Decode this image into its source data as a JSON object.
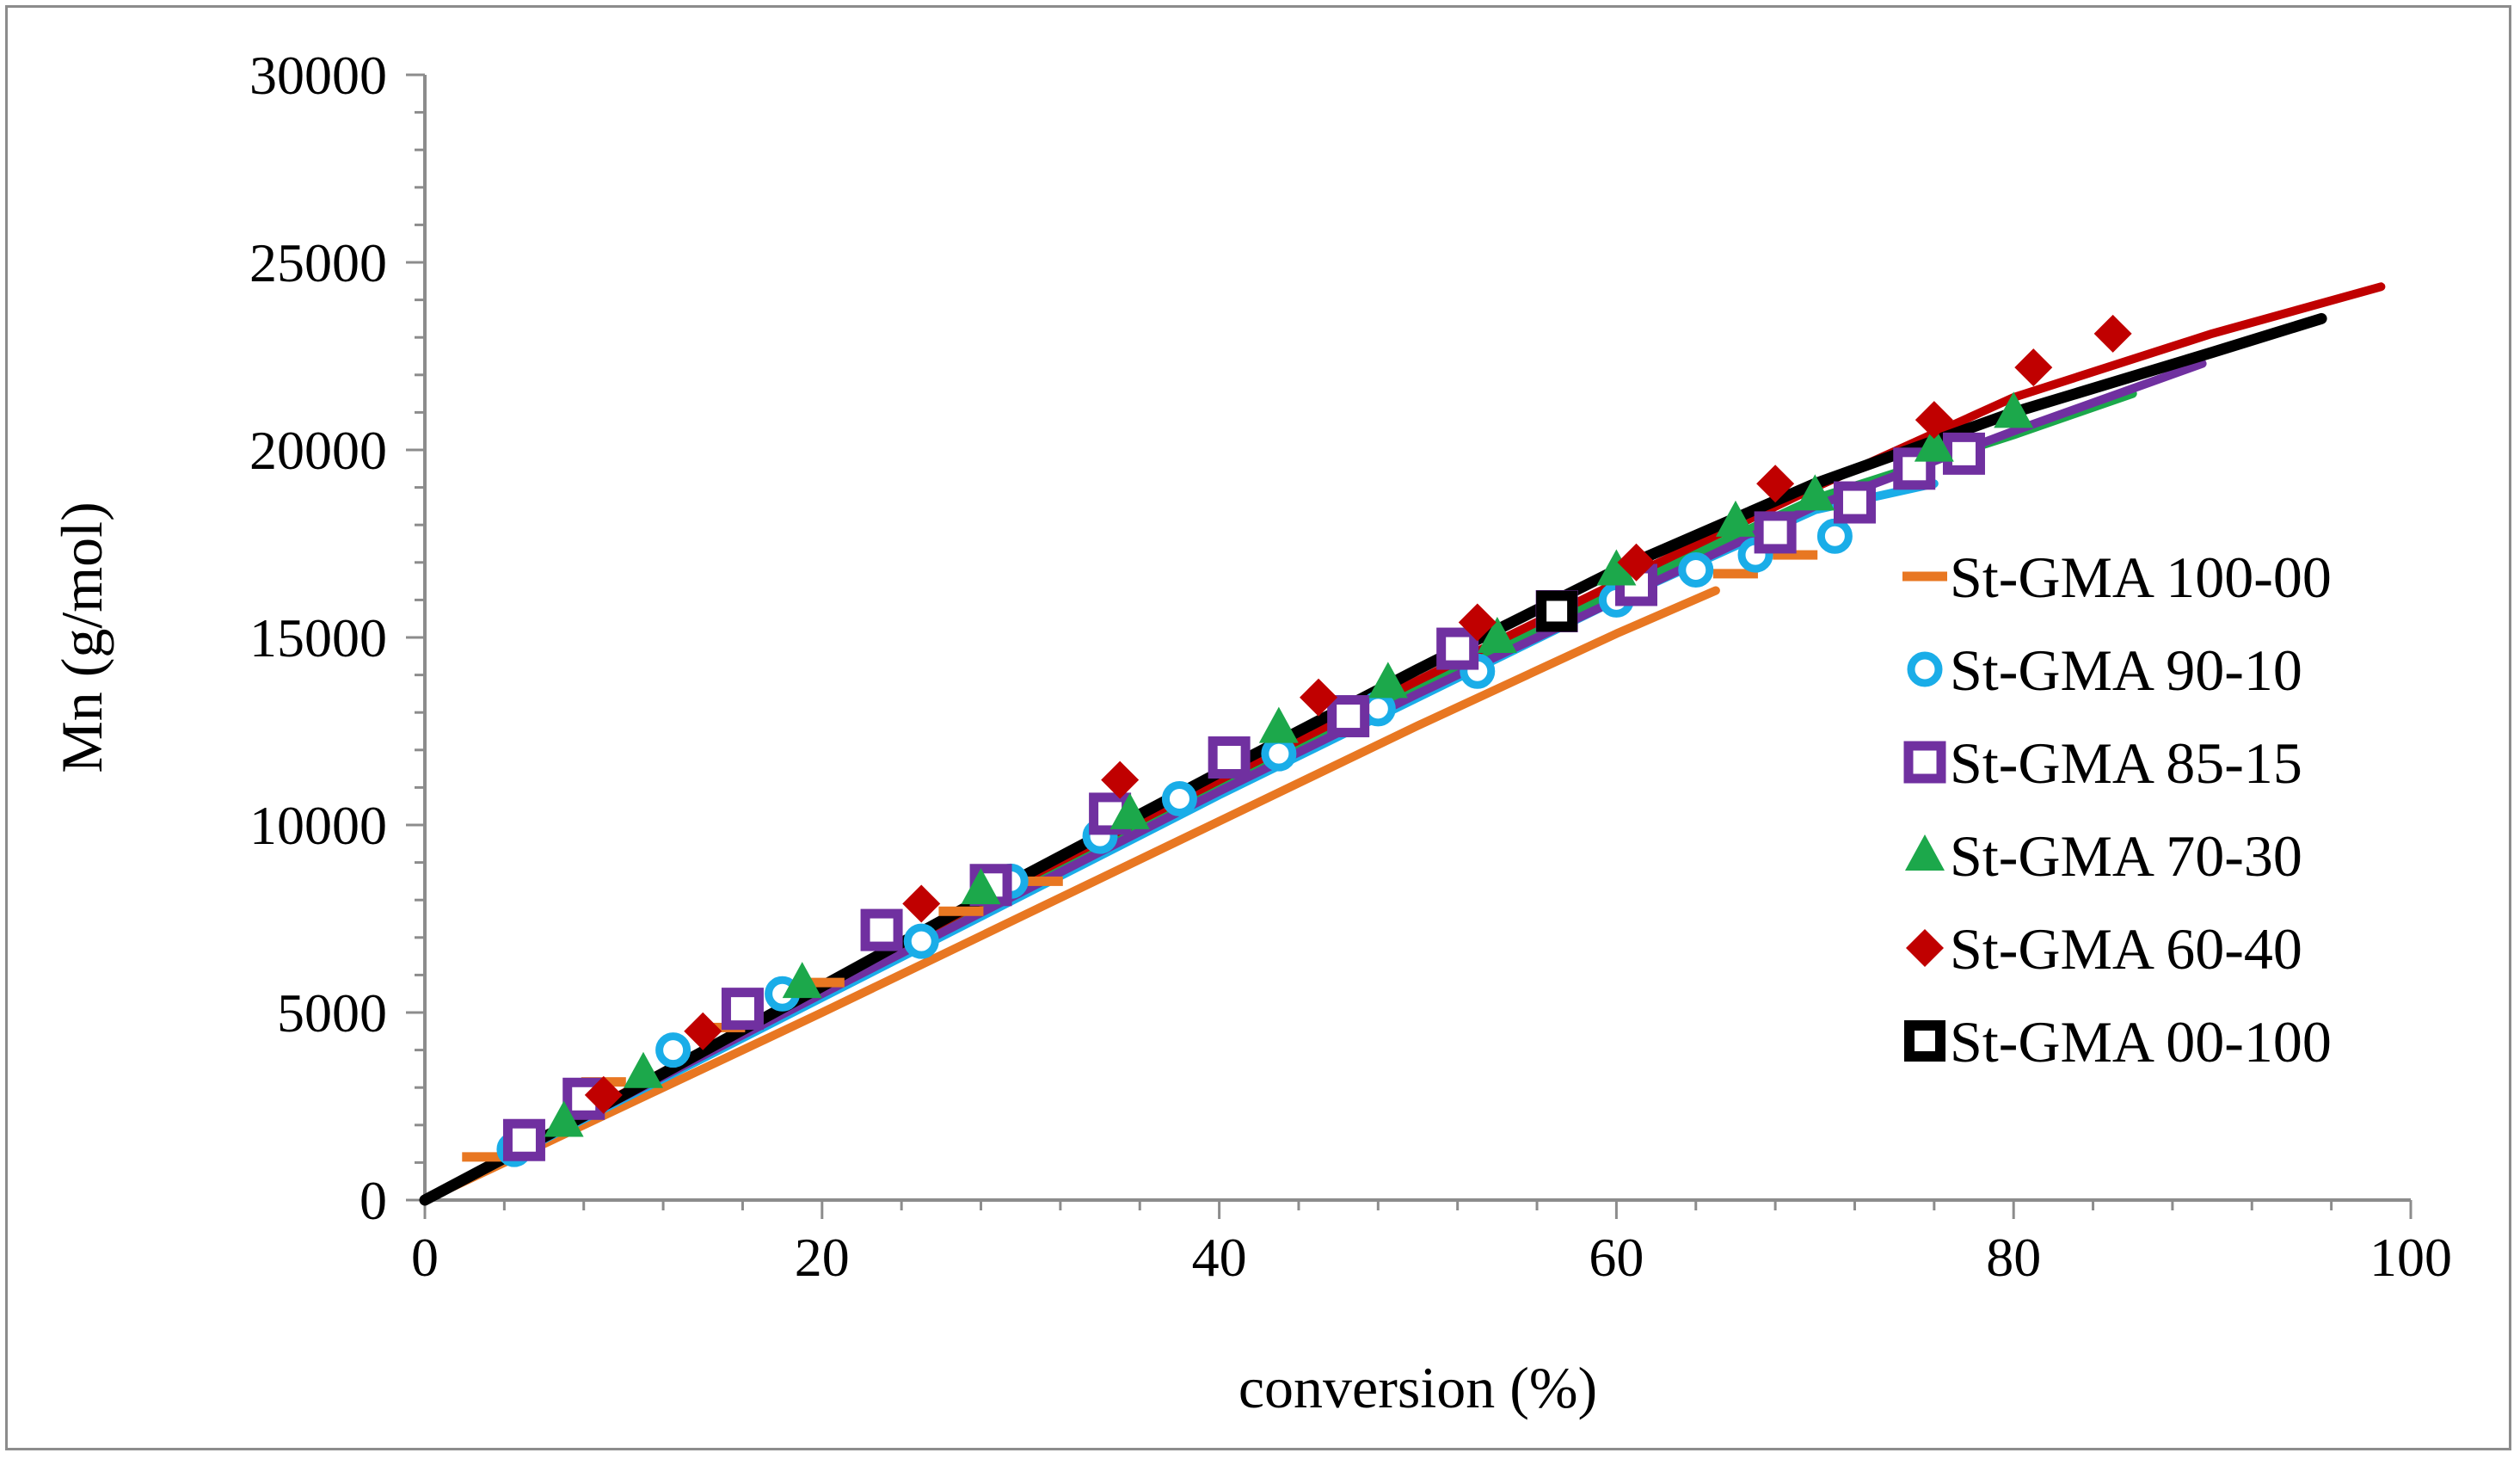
{
  "chart_data": {
    "type": "scatter",
    "title": "",
    "xlabel": "conversion  (%)",
    "ylabel": "Mn (g/mol)",
    "xlim": [
      0,
      100
    ],
    "ylim": [
      0,
      30000
    ],
    "xticks": [
      0,
      20,
      40,
      60,
      80,
      100
    ],
    "yticks": [
      0,
      5000,
      10000,
      15000,
      20000,
      25000,
      30000
    ],
    "grid": false,
    "legend_position": "right",
    "series": [
      {
        "name": "St-GMA 100-00",
        "marker": "dash",
        "color": "#E87722",
        "points": [
          [
            3,
            1150
          ],
          [
            9,
            3150
          ],
          [
            15,
            4600
          ],
          [
            20,
            5800
          ],
          [
            27,
            7700
          ],
          [
            31,
            8500
          ],
          [
            66,
            16700
          ],
          [
            69,
            17200
          ]
        ],
        "model": [
          [
            0,
            0
          ],
          [
            10,
            2500
          ],
          [
            20,
            5000
          ],
          [
            30,
            7550
          ],
          [
            40,
            10100
          ],
          [
            50,
            12650
          ],
          [
            60,
            15100
          ],
          [
            65,
            16250
          ]
        ]
      },
      {
        "name": "St-GMA 90-10",
        "marker": "circle",
        "color": "#1AADE8",
        "points": [
          [
            4.5,
            1350
          ],
          [
            12.5,
            4000
          ],
          [
            18,
            5500
          ],
          [
            25,
            6900
          ],
          [
            29.5,
            8500
          ],
          [
            34,
            9700
          ],
          [
            38,
            10700
          ],
          [
            43,
            11900
          ],
          [
            48,
            13100
          ],
          [
            53,
            14100
          ],
          [
            60,
            16000
          ],
          [
            64,
            16800
          ],
          [
            67,
            17200
          ],
          [
            71,
            17700
          ]
        ],
        "model": [
          [
            0,
            0
          ],
          [
            10,
            2700
          ],
          [
            20,
            5400
          ],
          [
            30,
            8100
          ],
          [
            40,
            10800
          ],
          [
            50,
            13400
          ],
          [
            60,
            16000
          ],
          [
            70,
            18400
          ],
          [
            76,
            19100
          ]
        ]
      },
      {
        "name": "St-GMA 85-15",
        "marker": "square",
        "color": "#7030A0",
        "points": [
          [
            5,
            1600
          ],
          [
            8,
            2700
          ],
          [
            16,
            5100
          ],
          [
            23,
            7200
          ],
          [
            28.5,
            8400
          ],
          [
            34.5,
            10300
          ],
          [
            40.5,
            11800
          ],
          [
            46.5,
            12900
          ],
          [
            52,
            14700
          ],
          [
            57,
            15700
          ],
          [
            61,
            16400
          ],
          [
            68,
            17800
          ],
          [
            72,
            18600
          ],
          [
            75,
            19500
          ],
          [
            77.5,
            19900
          ]
        ],
        "model": [
          [
            0,
            0
          ],
          [
            10,
            2750
          ],
          [
            20,
            5500
          ],
          [
            30,
            8200
          ],
          [
            40,
            10900
          ],
          [
            50,
            13500
          ],
          [
            60,
            16000
          ],
          [
            70,
            18500
          ],
          [
            80,
            20500
          ],
          [
            89.5,
            22300
          ]
        ]
      },
      {
        "name": "St-GMA 70-30",
        "marker": "triangle",
        "color": "#1CA84B",
        "points": [
          [
            7,
            2100
          ],
          [
            11,
            3400
          ],
          [
            19,
            5800
          ],
          [
            28,
            8300
          ],
          [
            35.5,
            10300
          ],
          [
            43,
            12600
          ],
          [
            48.5,
            13800
          ],
          [
            54,
            15000
          ],
          [
            60,
            16800
          ],
          [
            66,
            18100
          ],
          [
            70,
            18800
          ],
          [
            76,
            20100
          ],
          [
            80,
            21000
          ]
        ],
        "model": [
          [
            0,
            0
          ],
          [
            10,
            2800
          ],
          [
            20,
            5600
          ],
          [
            30,
            8350
          ],
          [
            40,
            11050
          ],
          [
            50,
            13700
          ],
          [
            60,
            16250
          ],
          [
            70,
            18700
          ],
          [
            80,
            20400
          ],
          [
            86,
            21500
          ]
        ]
      },
      {
        "name": "St-GMA 60-40",
        "marker": "diamond",
        "color": "#C00000",
        "points": [
          [
            9,
            2800
          ],
          [
            14,
            4500
          ],
          [
            25,
            7900
          ],
          [
            35,
            11200
          ],
          [
            45,
            13400
          ],
          [
            53,
            15400
          ],
          [
            61,
            17000
          ],
          [
            68,
            19100
          ],
          [
            76,
            20800
          ],
          [
            81,
            22200
          ],
          [
            85,
            23100
          ]
        ],
        "model": [
          [
            0,
            0
          ],
          [
            10,
            2850
          ],
          [
            20,
            5700
          ],
          [
            30,
            8500
          ],
          [
            40,
            11200
          ],
          [
            50,
            13850
          ],
          [
            60,
            16450
          ],
          [
            70,
            19000
          ],
          [
            80,
            21400
          ],
          [
            90,
            23100
          ],
          [
            98.5,
            24350
          ]
        ]
      },
      {
        "name": "St-GMA 00-100",
        "marker": "open-square",
        "color": "#000000",
        "points": [
          [
            57,
            15700
          ]
        ],
        "model": [
          [
            0,
            0
          ],
          [
            10,
            2800
          ],
          [
            20,
            5700
          ],
          [
            30,
            8600
          ],
          [
            40,
            11400
          ],
          [
            50,
            14150
          ],
          [
            60,
            16800
          ],
          [
            70,
            19100
          ],
          [
            80,
            21000
          ],
          [
            90,
            22600
          ],
          [
            95.5,
            23500
          ]
        ]
      }
    ]
  }
}
